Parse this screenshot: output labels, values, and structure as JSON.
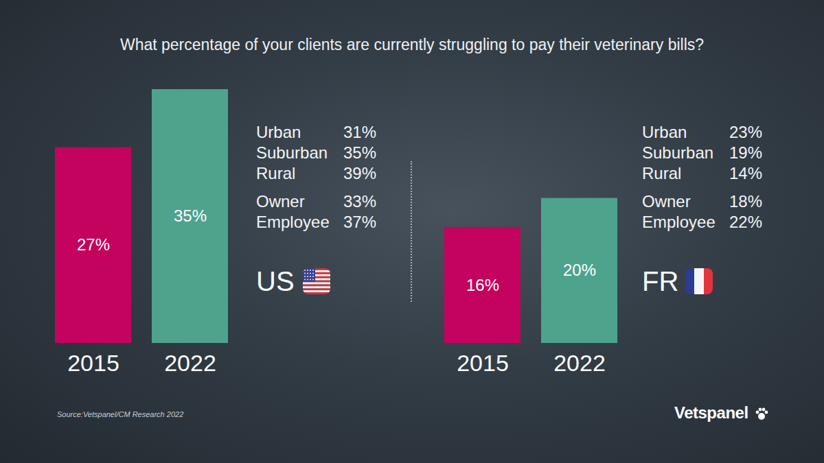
{
  "title": "What percentage of your clients are currently struggling to pay their veterinary bills?",
  "source": "Source:Vetspanel/CM Research 2022",
  "brand": "Vetspanel",
  "chart_data": [
    {
      "type": "bar",
      "title": "US",
      "categories": [
        "2015",
        "2022"
      ],
      "values": [
        27,
        35
      ],
      "value_labels": [
        "27%",
        "35%"
      ],
      "colors": [
        "#c4035e",
        "#4ea38d"
      ],
      "ylim": [
        0,
        35
      ],
      "data_labels": true,
      "tick_labels": "x",
      "breakdown": [
        {
          "labels": [
            "Urban",
            "Suburban",
            "Rural"
          ],
          "values": [
            31,
            35,
            39
          ],
          "value_labels": [
            "31%",
            "35%",
            "39%"
          ]
        },
        {
          "labels": [
            "Owner",
            "Employee"
          ],
          "values": [
            33,
            37
          ],
          "value_labels": [
            "33%",
            "37%"
          ]
        }
      ]
    },
    {
      "type": "bar",
      "title": "FR",
      "categories": [
        "2015",
        "2022"
      ],
      "values": [
        16,
        20
      ],
      "value_labels": [
        "16%",
        "20%"
      ],
      "colors": [
        "#c4035e",
        "#4ea38d"
      ],
      "ylim": [
        0,
        35
      ],
      "data_labels": true,
      "tick_labels": "x",
      "breakdown": [
        {
          "labels": [
            "Urban",
            "Suburban",
            "Rural"
          ],
          "values": [
            23,
            19,
            14
          ],
          "value_labels": [
            "23%",
            "19%",
            "14%"
          ]
        },
        {
          "labels": [
            "Owner",
            "Employee"
          ],
          "values": [
            18,
            22
          ],
          "value_labels": [
            "18%",
            "22%"
          ]
        }
      ]
    }
  ]
}
